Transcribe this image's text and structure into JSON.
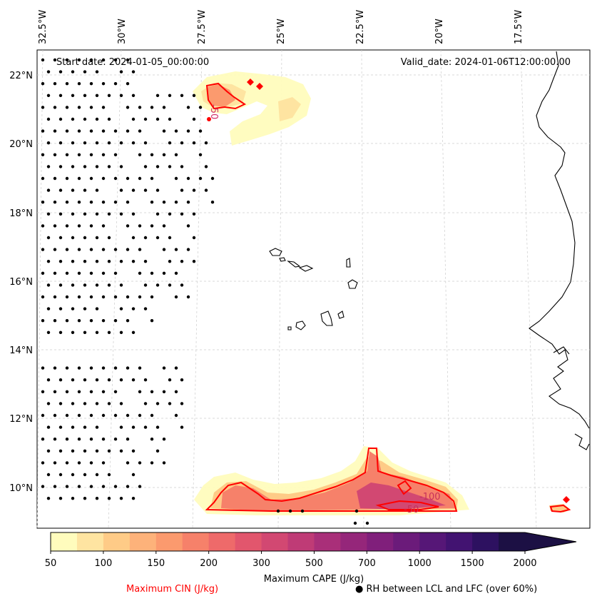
{
  "map": {
    "start_date": "Start date: 2024-01-05_00:00:00",
    "valid_date": "Valid_date: 2024-01-06T12:00:00.00",
    "lon_labels": [
      "32.5°W",
      "30°W",
      "27.5°W",
      "25°W",
      "22.5°W",
      "20°W",
      "17.5°W"
    ],
    "lat_labels": [
      "22°N",
      "20°N",
      "18°N",
      "16°N",
      "14°N",
      "12°N",
      "10°N"
    ],
    "cin_contour_labels": [
      "-50",
      "-100",
      "-50"
    ]
  },
  "colorbar": {
    "tick_labels": [
      "50",
      "100",
      "150",
      "200",
      "300",
      "500",
      "700",
      "1000",
      "1500",
      "2000"
    ],
    "title": "Maximum CAPE (J/kg)",
    "colors": [
      "#fffcbd",
      "#fee4a1",
      "#fecb87",
      "#fdb27a",
      "#fb9a6e",
      "#f6816a",
      "#ee6a6a",
      "#e2566d",
      "#d24872",
      "#bf3b76",
      "#a92f79",
      "#95267a",
      "#801f7b",
      "#6b1b7a",
      "#561777",
      "#421371",
      "#2d1160",
      "#1c1044"
    ]
  },
  "legend": {
    "cin_label": "Maximum CIN (J/kg)",
    "cin_color": "#ff0000",
    "rh_marker": "●",
    "rh_label": "RH between LCL and LFC (over 60%)"
  }
}
